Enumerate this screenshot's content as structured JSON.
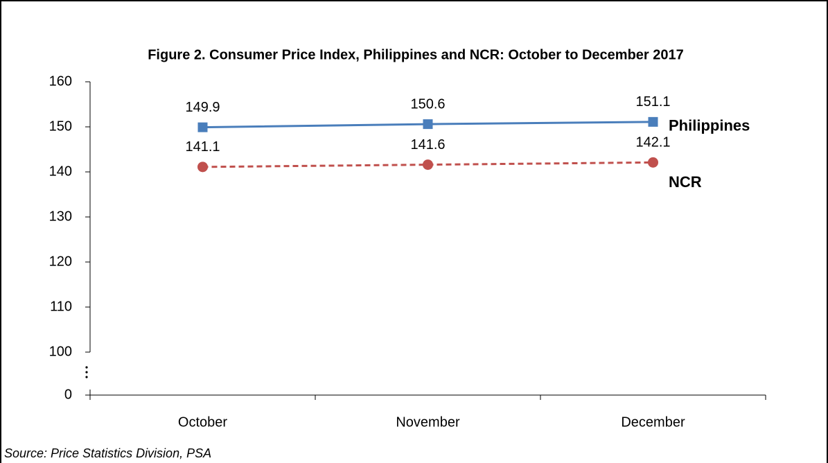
{
  "chart_data": {
    "type": "line",
    "title": "Figure 2. Consumer Price Index, Philippines and NCR: October to December 2017",
    "categories": [
      "October",
      "November",
      "December"
    ],
    "series": [
      {
        "name": "Philippines",
        "color": "#4a7ebb",
        "marker": "square",
        "dashed": false,
        "values": [
          149.9,
          150.6,
          151.1
        ]
      },
      {
        "name": "NCR",
        "color": "#c0504d",
        "marker": "circle",
        "dashed": true,
        "values": [
          141.1,
          141.6,
          142.1
        ]
      }
    ],
    "ylim": [
      0,
      160
    ],
    "yticks": [
      0,
      100,
      110,
      120,
      130,
      140,
      150,
      160
    ],
    "axis_break": true,
    "source": "Source: Price Statistics Division, PSA"
  }
}
